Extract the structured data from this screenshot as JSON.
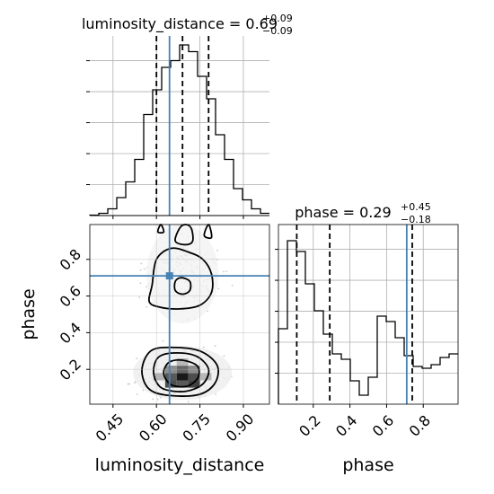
{
  "chart_data": {
    "type": "corner",
    "parameters": [
      "luminosity_distance",
      "phase"
    ],
    "truths": {
      "luminosity_distance": 0.645,
      "phase": 0.71
    },
    "grid": true,
    "luminosity_distance": {
      "title_name": "luminosity_distance",
      "median": "0.69",
      "plus": "+0.09",
      "minus": "−0.09",
      "quantiles": [
        0.6,
        0.69,
        0.78
      ],
      "xlim": [
        0.37,
        0.99
      ],
      "ticks": [
        "0.45",
        "0.60",
        "0.75",
        "0.90"
      ],
      "tick_values": [
        0.45,
        0.6,
        0.75,
        0.9
      ],
      "hist_edges": [
        0.37,
        0.401,
        0.432,
        0.463,
        0.494,
        0.525,
        0.556,
        0.587,
        0.618,
        0.649,
        0.68,
        0.711,
        0.742,
        0.773,
        0.804,
        0.835,
        0.866,
        0.897,
        0.928,
        0.959,
        0.99
      ],
      "hist_counts": [
        0.2,
        1,
        3,
        8,
        15,
        25,
        45,
        56,
        66,
        69,
        76,
        73,
        62,
        52,
        36,
        25,
        12,
        7,
        3,
        1
      ],
      "hist_ymax": 80
    },
    "phase": {
      "title_name": "phase",
      "median": "0.29",
      "plus": "+0.45",
      "minus": "−0.18",
      "quantiles": [
        0.11,
        0.29,
        0.74
      ],
      "xlim": [
        0.01,
        0.99
      ],
      "ylim": [
        0.01,
        0.99
      ],
      "ticks": [
        "0.2",
        "0.4",
        "0.6",
        "0.8"
      ],
      "tick_values": [
        0.2,
        0.4,
        0.6,
        0.8
      ],
      "hist_edges": [
        0.01,
        0.059,
        0.108,
        0.157,
        0.206,
        0.255,
        0.304,
        0.353,
        0.402,
        0.451,
        0.5,
        0.549,
        0.598,
        0.647,
        0.696,
        0.745,
        0.794,
        0.843,
        0.892,
        0.941,
        0.99
      ],
      "hist_counts": [
        42,
        91,
        85,
        67,
        52,
        39,
        28,
        25,
        13,
        5,
        15,
        49,
        46,
        37,
        27,
        21,
        20,
        22,
        26,
        28
      ],
      "hist_ymax": 100
    },
    "contour_levels": [
      [
        [
          0.55,
          0.2
        ],
        [
          0.58,
          0.3
        ],
        [
          0.65,
          0.32
        ],
        [
          0.75,
          0.3
        ],
        [
          0.81,
          0.22
        ],
        [
          0.8,
          0.12
        ],
        [
          0.74,
          0.06
        ],
        [
          0.63,
          0.06
        ],
        [
          0.57,
          0.1
        ]
      ],
      [
        [
          0.59,
          0.2
        ],
        [
          0.61,
          0.27
        ],
        [
          0.67,
          0.29
        ],
        [
          0.74,
          0.27
        ],
        [
          0.78,
          0.2
        ],
        [
          0.76,
          0.12
        ],
        [
          0.7,
          0.08
        ],
        [
          0.63,
          0.09
        ],
        [
          0.6,
          0.13
        ]
      ],
      [
        [
          0.625,
          0.19
        ],
        [
          0.645,
          0.24
        ],
        [
          0.69,
          0.25
        ],
        [
          0.74,
          0.22
        ],
        [
          0.745,
          0.16
        ],
        [
          0.71,
          0.11
        ],
        [
          0.66,
          0.11
        ],
        [
          0.635,
          0.14
        ]
      ],
      [
        [
          0.575,
          0.57
        ],
        [
          0.585,
          0.66
        ],
        [
          0.6,
          0.8
        ],
        [
          0.65,
          0.86
        ],
        [
          0.71,
          0.84
        ],
        [
          0.76,
          0.8
        ],
        [
          0.79,
          0.72
        ],
        [
          0.79,
          0.62
        ],
        [
          0.75,
          0.55
        ],
        [
          0.68,
          0.53
        ],
        [
          0.61,
          0.54
        ]
      ],
      [
        [
          0.665,
          0.63
        ],
        [
          0.665,
          0.68
        ],
        [
          0.685,
          0.7
        ],
        [
          0.715,
          0.68
        ],
        [
          0.715,
          0.63
        ],
        [
          0.69,
          0.61
        ]
      ],
      [
        [
          0.665,
          0.9
        ],
        [
          0.68,
          0.97
        ],
        [
          0.7,
          0.99
        ],
        [
          0.72,
          0.97
        ],
        [
          0.725,
          0.9
        ],
        [
          0.7,
          0.88
        ]
      ],
      [
        [
          0.605,
          0.95
        ],
        [
          0.615,
          0.99
        ],
        [
          0.625,
          0.95
        ]
      ],
      [
        [
          0.765,
          0.93
        ],
        [
          0.78,
          0.99
        ],
        [
          0.79,
          0.92
        ]
      ]
    ],
    "density_blocks": [
      {
        "x": [
          0.63,
          0.67
        ],
        "y": [
          0.1,
          0.14
        ],
        "level": 0.3
      },
      {
        "x": [
          0.67,
          0.71
        ],
        "y": [
          0.1,
          0.14
        ],
        "level": 0.35
      },
      {
        "x": [
          0.71,
          0.75
        ],
        "y": [
          0.1,
          0.14
        ],
        "level": 0.25
      },
      {
        "x": [
          0.63,
          0.67
        ],
        "y": [
          0.14,
          0.18
        ],
        "level": 0.35
      },
      {
        "x": [
          0.67,
          0.71
        ],
        "y": [
          0.14,
          0.18
        ],
        "level": 0.1
      },
      {
        "x": [
          0.71,
          0.75
        ],
        "y": [
          0.14,
          0.18
        ],
        "level": 0.3
      },
      {
        "x": [
          0.63,
          0.67
        ],
        "y": [
          0.18,
          0.22
        ],
        "level": 0.55
      },
      {
        "x": [
          0.67,
          0.71
        ],
        "y": [
          0.18,
          0.22
        ],
        "level": 0.4
      },
      {
        "x": [
          0.71,
          0.75
        ],
        "y": [
          0.18,
          0.22
        ],
        "level": 0.55
      },
      {
        "x": [
          0.59,
          0.63
        ],
        "y": [
          0.14,
          0.18
        ],
        "level": 0.7
      },
      {
        "x": [
          0.75,
          0.79
        ],
        "y": [
          0.14,
          0.18
        ],
        "level": 0.72
      },
      {
        "x": [
          0.67,
          0.71
        ],
        "y": [
          0.22,
          0.26
        ],
        "level": 0.72
      }
    ],
    "colors": {
      "truth": "#4682b4",
      "hist": "#000000",
      "grid": "#b0b0b0"
    }
  }
}
